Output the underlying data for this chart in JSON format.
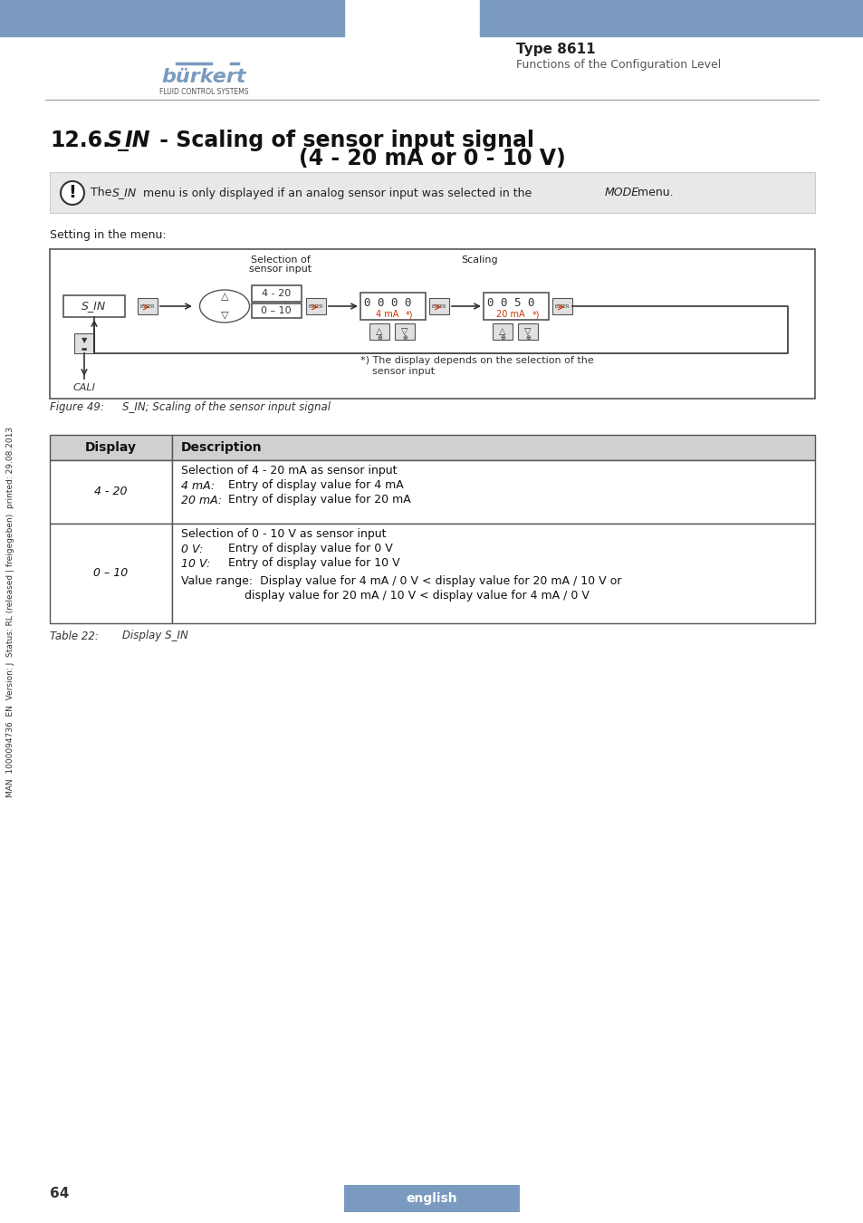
{
  "page_bg": "#ffffff",
  "header_bar_color": "#7a9bbf",
  "header_text_right_bold": "Type 8611",
  "header_text_right_sub": "Functions of the Configuration Level",
  "section_title_number": "12.6.",
  "section_title_italic": "S_IN",
  "section_title_rest": " - Scaling of sensor input signal",
  "section_title_line2": "(4 - 20 mA or 0 - 10 V)",
  "note_text": "The S_IN menu is only displayed if an analog sensor input was selected in the MODE menu.",
  "setting_label": "Setting in the menu:",
  "figure_caption": "Figure 49:      S_IN; Scaling of the sensor input signal",
  "table_caption": "Table 22:       Display S_IN",
  "sidebar_text": "MAN  1000094736  EN  Version: J  Status: RL (released | freigegeben)  printed: 29.08.2013",
  "page_number": "64",
  "footer_text": "english",
  "table_headers": [
    "Display",
    "Description"
  ],
  "table_rows": [
    {
      "display": "4 - 20",
      "description_lines": [
        "Selection of 4 - 20 mA as sensor input",
        "4 mA:    Entry of display value for 4 mA",
        "20 mA:   Entry of display value for 20 mA"
      ]
    },
    {
      "display": "0 – 10",
      "description_lines": [
        "Selection of 0 - 10 V as sensor input",
        "0 V:       Entry of display value for 0 V",
        "10 V:      Entry of display value for 10 V",
        "",
        "Value range:  Display value for 4 mA / 0 V < display value for 20 mA / 10 V or",
        "                     display value for 20 mA / 10 V < display value for 4 mA / 0 V"
      ]
    }
  ]
}
